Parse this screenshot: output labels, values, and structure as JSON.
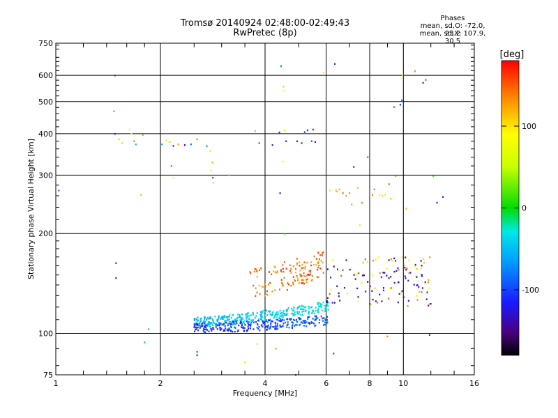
{
  "title": "Tromsø 20140924 02:48:00-02:49:43",
  "subtitle": "RwPretec (8p)",
  "phase_box": {
    "heading": "Phases",
    "line1": "mean, sd,O: -72.0, 23.2",
    "line2": "mean, sd,X: 107.9, 30.5"
  },
  "colorbar": {
    "label": "[deg]",
    "ticks": [
      {
        "value": 100,
        "label": "100"
      },
      {
        "value": 0,
        "label": "0"
      },
      {
        "value": -100,
        "label": "-100"
      }
    ],
    "range": [
      -180,
      180
    ]
  },
  "chart_data": {
    "type": "scatter",
    "xlabel": "Frequency [MHz]",
    "ylabel": "Stationary phase Virtual Height [km]",
    "xscale": "log",
    "yscale": "log",
    "xlim": [
      1,
      16
    ],
    "ylim": [
      75,
      750
    ],
    "xticks": [
      {
        "value": 1,
        "label": "1"
      },
      {
        "value": 2,
        "label": "2"
      },
      {
        "value": 4,
        "label": "4"
      },
      {
        "value": 6,
        "label": "6"
      },
      {
        "value": 8,
        "label": "8"
      },
      {
        "value": 10,
        "label": "10"
      },
      {
        "value": 16,
        "label": "16"
      }
    ],
    "xgrid": [
      2,
      4,
      6,
      8,
      10
    ],
    "xminor": [
      9
    ],
    "yticks": [
      {
        "value": 75,
        "label": "75"
      },
      {
        "value": 100,
        "label": "100"
      },
      {
        "value": 200,
        "label": "200"
      },
      {
        "value": 300,
        "label": "300"
      },
      {
        "value": 400,
        "label": "400"
      },
      {
        "value": 500,
        "label": "500"
      },
      {
        "value": 600,
        "label": "600"
      },
      {
        "value": 750,
        "label": "750"
      }
    ],
    "ygrid": [
      100,
      200,
      300,
      400,
      500,
      600
    ],
    "grid": true,
    "points": [
      [
        1.02,
        270,
        -90
      ],
      [
        1.48,
        600,
        -110
      ],
      [
        1.47,
        468,
        -20
      ],
      [
        1.48,
        400,
        -120
      ],
      [
        1.52,
        385,
        110
      ],
      [
        1.55,
        375,
        105
      ],
      [
        1.63,
        412,
        80
      ],
      [
        1.65,
        400,
        90
      ],
      [
        1.68,
        380,
        140
      ],
      [
        1.7,
        372,
        -60
      ],
      [
        1.76,
        262,
        120
      ],
      [
        1.78,
        397,
        130
      ],
      [
        1.49,
        163,
        -110
      ],
      [
        1.49,
        147,
        -120
      ],
      [
        1.8,
        94,
        -5
      ],
      [
        1.85,
        103,
        -60
      ],
      [
        2.02,
        372,
        -70
      ],
      [
        2.08,
        383,
        70
      ],
      [
        2.13,
        378,
        110
      ],
      [
        2.18,
        368,
        -120
      ],
      [
        2.25,
        372,
        130
      ],
      [
        2.35,
        370,
        -150
      ],
      [
        2.45,
        372,
        -90
      ],
      [
        2.55,
        385,
        140
      ],
      [
        2.72,
        367,
        -80
      ],
      [
        2.78,
        355,
        100
      ],
      [
        2.82,
        328,
        120
      ],
      [
        2.8,
        310,
        60
      ],
      [
        2.84,
        285,
        40
      ],
      [
        2.83,
        295,
        -90
      ],
      [
        3.15,
        300,
        30
      ],
      [
        2.15,
        320,
        -60
      ],
      [
        2.18,
        295,
        80
      ],
      [
        3.75,
        408,
        120
      ],
      [
        3.85,
        375,
        -90
      ],
      [
        4.2,
        370,
        -120
      ],
      [
        4.4,
        404,
        -110
      ],
      [
        4.45,
        640,
        -80
      ],
      [
        4.52,
        555,
        110
      ],
      [
        4.53,
        540,
        90
      ],
      [
        4.55,
        410,
        100
      ],
      [
        4.6,
        380,
        -110
      ],
      [
        4.5,
        330,
        100
      ],
      [
        4.42,
        265,
        -120
      ],
      [
        4.55,
        200,
        10
      ],
      [
        4.95,
        380,
        -120
      ],
      [
        5.1,
        375,
        -110
      ],
      [
        5.2,
        405,
        -100
      ],
      [
        5.3,
        410,
        -120
      ],
      [
        5.5,
        412,
        -110
      ],
      [
        5.45,
        380,
        -100
      ],
      [
        5.58,
        378,
        -120
      ],
      [
        5.9,
        612,
        100
      ],
      [
        6.35,
        650,
        -110
      ],
      [
        6.15,
        270,
        100
      ],
      [
        6.4,
        270,
        120
      ],
      [
        6.45,
        268,
        120
      ],
      [
        6.55,
        272,
        130
      ],
      [
        6.7,
        265,
        150
      ],
      [
        6.85,
        260,
        130
      ],
      [
        7.0,
        265,
        140
      ],
      [
        7.1,
        245,
        130
      ],
      [
        7.2,
        318,
        -120
      ],
      [
        7.4,
        275,
        120
      ],
      [
        7.5,
        212,
        100
      ],
      [
        7.6,
        248,
        140
      ],
      [
        7.9,
        340,
        -80
      ],
      [
        8.15,
        262,
        140
      ],
      [
        8.25,
        272,
        150
      ],
      [
        8.55,
        262,
        60
      ],
      [
        8.7,
        260,
        50
      ],
      [
        8.85,
        262,
        70
      ],
      [
        9.1,
        282,
        150
      ],
      [
        9.2,
        255,
        120
      ],
      [
        9.4,
        482,
        160
      ],
      [
        9.5,
        298,
        130
      ],
      [
        9.8,
        490,
        -100
      ],
      [
        9.9,
        505,
        -90
      ],
      [
        9.95,
        600,
        110
      ],
      [
        10.2,
        238,
        120
      ],
      [
        10.8,
        618,
        140
      ],
      [
        11.4,
        570,
        -120
      ],
      [
        11.6,
        582,
        160
      ],
      [
        12.2,
        298,
        20
      ],
      [
        12.5,
        248,
        -110
      ],
      [
        13.0,
        258,
        -120
      ],
      [
        2.55,
        88,
        -90
      ],
      [
        2.55,
        86,
        -110
      ],
      [
        4.3,
        90,
        130
      ],
      [
        4.9,
        75,
        -90
      ],
      [
        6.3,
        87,
        -100
      ],
      [
        3.5,
        82,
        100
      ],
      [
        9.0,
        98,
        140
      ],
      [
        11.9,
        99,
        -110
      ],
      [
        3.8,
        93,
        100
      ]
    ]
  }
}
